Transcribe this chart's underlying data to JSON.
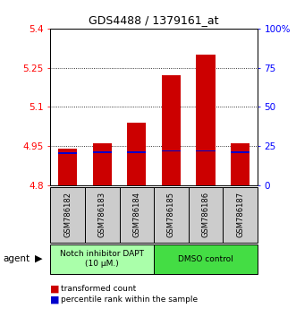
{
  "title": "GDS4488 / 1379161_at",
  "samples": [
    "GSM786182",
    "GSM786183",
    "GSM786184",
    "GSM786185",
    "GSM786186",
    "GSM786187"
  ],
  "bar_bottoms": [
    4.8,
    4.8,
    4.8,
    4.8,
    4.8,
    4.8
  ],
  "bar_tops": [
    4.94,
    4.96,
    5.04,
    5.22,
    5.3,
    4.96
  ],
  "blue_values": [
    4.924,
    4.926,
    4.926,
    4.932,
    4.932,
    4.926
  ],
  "ylim_left": [
    4.8,
    5.4
  ],
  "ylim_right": [
    0,
    100
  ],
  "yticks_left": [
    4.8,
    4.95,
    5.1,
    5.25,
    5.4
  ],
  "yticks_right": [
    0,
    25,
    50,
    75,
    100
  ],
  "ytick_labels_left": [
    "4.8",
    "4.95",
    "5.1",
    "5.25",
    "5.4"
  ],
  "ytick_labels_right": [
    "0",
    "25",
    "50",
    "75",
    "100%"
  ],
  "gridlines": [
    4.95,
    5.1,
    5.25
  ],
  "bar_color": "#cc0000",
  "blue_color": "#0000cc",
  "group1_label": "Notch inhibitor DAPT\n(10 μM.)",
  "group2_label": "DMSO control",
  "group1_indices": [
    0,
    1,
    2
  ],
  "group2_indices": [
    3,
    4,
    5
  ],
  "group1_bg": "#aaffaa",
  "group2_bg": "#44dd44",
  "sample_bg": "#cccccc",
  "agent_label": "agent",
  "legend_tc": "transformed count",
  "legend_pr": "percentile rank within the sample",
  "bar_width": 0.55
}
